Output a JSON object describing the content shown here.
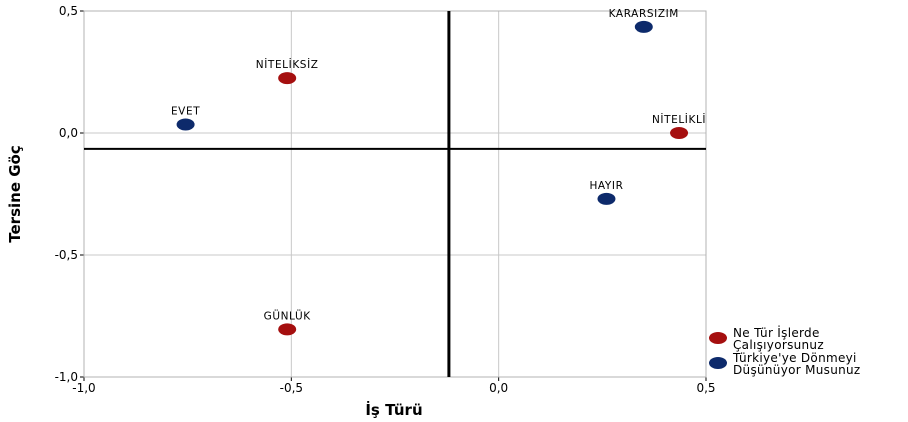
{
  "chart_data": {
    "type": "scatter",
    "title": "",
    "xlabel": "İş Türü",
    "ylabel": "Tersine Göç",
    "xlim": [
      -1.0,
      0.5
    ],
    "ylim": [
      -1.0,
      0.5
    ],
    "x_ticks": [
      -1.0,
      -0.5,
      0.0,
      0.5
    ],
    "y_ticks": [
      -1.0,
      -0.5,
      0.0,
      0.5
    ],
    "x_tick_labels": [
      "-1,0",
      "-0,5",
      "0,0",
      "0,5"
    ],
    "y_tick_labels": [
      "-1,0",
      "-0,5",
      "0,0",
      "0,5"
    ],
    "grid": true,
    "reference_lines": {
      "x": -0.12,
      "y": -0.065
    },
    "legend_position": "bottom-right",
    "series": [
      {
        "name": "Ne Tür İşlerde Çalışıyorsunuz",
        "legend_lines": [
          "Ne Tür İşlerde",
          "Çalışıyorsunuz"
        ],
        "color": "#a50f0f",
        "points": [
          {
            "label": "NİTELİKSİZ",
            "x": -0.51,
            "y": 0.225
          },
          {
            "label": "NİTELİKLİ",
            "x": 0.435,
            "y": 0.0
          },
          {
            "label": "GÜNLÜK",
            "x": -0.51,
            "y": -0.805
          }
        ]
      },
      {
        "name": "Türkiye'ye Dönmeyi Düşünüyor Musunuz",
        "legend_lines": [
          "Türkiye'ye Dönmeyi",
          "Düşünüyor Musunuz"
        ],
        "color": "#0d2a6b",
        "points": [
          {
            "label": "KARARSIZIM",
            "x": 0.35,
            "y": 0.435
          },
          {
            "label": "EVET",
            "x": -0.755,
            "y": 0.035
          },
          {
            "label": "HAYIR",
            "x": 0.26,
            "y": -0.27
          }
        ]
      }
    ]
  }
}
